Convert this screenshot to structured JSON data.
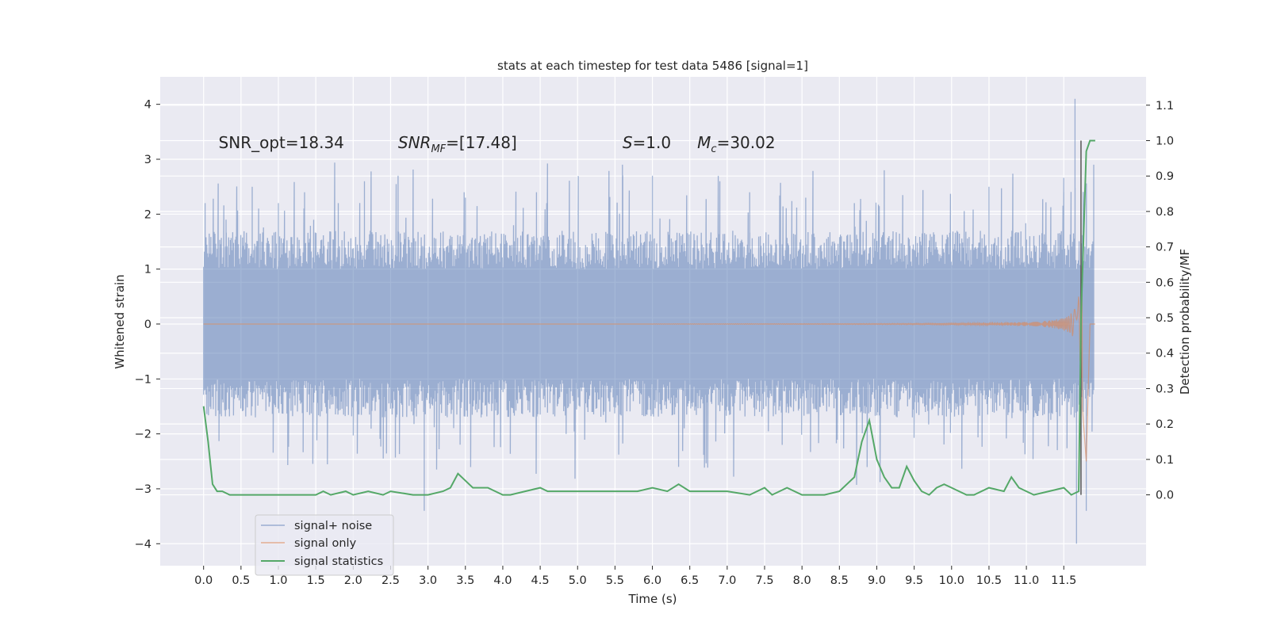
{
  "chart_data": {
    "type": "line",
    "title": "stats at each timestep for test data 5486 [signal=1]",
    "xlabel": "Time (s)",
    "ylabel": "Whitened strain",
    "ylabel_right": "Detection probability/MF",
    "xlim": [
      -0.58,
      12.6
    ],
    "ylim": [
      -4.4,
      4.5
    ],
    "ylim_right": [
      -0.2,
      1.18
    ],
    "x_ticks": [
      "0.0",
      "0.5",
      "1.0",
      "1.5",
      "2.0",
      "2.5",
      "3.0",
      "3.5",
      "4.0",
      "4.5",
      "5.0",
      "5.5",
      "6.0",
      "6.5",
      "7.0",
      "7.5",
      "8.0",
      "8.5",
      "9.0",
      "9.5",
      "10.0",
      "10.5",
      "11.0",
      "11.5"
    ],
    "y_ticks": [
      "4",
      "3",
      "2",
      "1",
      "0",
      "−1",
      "−2",
      "−3",
      "−4"
    ],
    "y_ticks_right": [
      "1.1",
      "1.0",
      "0.9",
      "0.8",
      "0.7",
      "0.6",
      "0.5",
      "0.4",
      "0.3",
      "0.2",
      "0.1",
      "0.0"
    ],
    "grid": true,
    "legend_position": "lower-left",
    "annotations": [
      {
        "label": "SNR_opt=18.34",
        "x": 0.2,
        "y": 3.3
      },
      {
        "label": "SNR",
        "sub": "MF",
        "suffix": "=[17.48]",
        "italic": true,
        "x": 2.6,
        "y": 3.3
      },
      {
        "label": "S",
        "suffix": "=1.0",
        "italic": true,
        "x": 5.6,
        "y": 3.3
      },
      {
        "label": "M",
        "sub": "c",
        "suffix": "=30.02",
        "italic": true,
        "x": 6.6,
        "y": 3.3
      }
    ],
    "series": [
      {
        "name": "signal+ noise",
        "axis": "left",
        "color": "#4c72b0",
        "opacity": 0.5,
        "envelope_x": [
          0.0,
          11.9
        ],
        "envelope_upper_approx": 1.3,
        "envelope_lower_approx": -1.3,
        "spikes": [
          [
            0.02,
            2.2
          ],
          [
            0.3,
            1.9
          ],
          [
            0.65,
            2.5
          ],
          [
            1.0,
            2.2
          ],
          [
            1.35,
            2.4
          ],
          [
            1.8,
            2.2
          ],
          [
            2.15,
            2.6
          ],
          [
            2.6,
            2.7
          ],
          [
            2.95,
            -3.4
          ],
          [
            3.5,
            2.3
          ],
          [
            4.45,
            2.4
          ],
          [
            5.6,
            2.9
          ],
          [
            6.0,
            2.7
          ],
          [
            6.35,
            -2.6
          ],
          [
            7.3,
            2.4
          ],
          [
            8.05,
            2.3
          ],
          [
            8.7,
            2.2
          ],
          [
            9.1,
            2.8
          ],
          [
            10.5,
            2.5
          ],
          [
            11.5,
            2.4
          ],
          [
            11.65,
            4.1
          ],
          [
            11.67,
            -4.0
          ],
          [
            11.8,
            -3.4
          ],
          [
            11.9,
            2.9
          ]
        ]
      },
      {
        "name": "signal only",
        "axis": "left",
        "color": "#dd8452",
        "opacity": 0.6,
        "chirp_start_x": 6.0,
        "chirp_peak_x": 11.75,
        "chirp_peak_amplitude": 3.2
      },
      {
        "name": "signal statistics",
        "axis": "right",
        "color": "#55a868",
        "x": [
          0.0,
          0.06,
          0.12,
          0.18,
          0.25,
          0.35,
          0.5,
          0.7,
          1.0,
          1.3,
          1.5,
          1.6,
          1.7,
          1.9,
          2.0,
          2.2,
          2.4,
          2.5,
          2.8,
          3.0,
          3.2,
          3.3,
          3.4,
          3.5,
          3.6,
          3.7,
          3.8,
          3.9,
          4.0,
          4.1,
          4.3,
          4.5,
          4.6,
          4.8,
          5.0,
          5.2,
          5.5,
          5.8,
          6.0,
          6.2,
          6.35,
          6.5,
          6.7,
          7.0,
          7.3,
          7.5,
          7.6,
          7.8,
          8.0,
          8.3,
          8.5,
          8.7,
          8.8,
          8.9,
          9.0,
          9.1,
          9.2,
          9.3,
          9.4,
          9.5,
          9.6,
          9.7,
          9.8,
          9.9,
          10.0,
          10.1,
          10.2,
          10.3,
          10.5,
          10.7,
          10.8,
          10.9,
          11.0,
          11.1,
          11.3,
          11.5,
          11.6,
          11.7,
          11.73,
          11.8,
          11.85,
          11.92
        ],
        "y": [
          0.25,
          0.15,
          0.03,
          0.01,
          0.01,
          0.0,
          0.0,
          0.0,
          0.0,
          0.0,
          0.0,
          0.01,
          0.0,
          0.01,
          0.0,
          0.01,
          0.0,
          0.01,
          0.0,
          0.0,
          0.01,
          0.02,
          0.06,
          0.04,
          0.02,
          0.02,
          0.02,
          0.01,
          0.0,
          0.0,
          0.01,
          0.02,
          0.01,
          0.01,
          0.01,
          0.01,
          0.01,
          0.01,
          0.02,
          0.01,
          0.03,
          0.01,
          0.01,
          0.01,
          0.0,
          0.02,
          0.0,
          0.02,
          0.0,
          0.0,
          0.01,
          0.05,
          0.15,
          0.21,
          0.1,
          0.05,
          0.02,
          0.02,
          0.08,
          0.04,
          0.01,
          0.0,
          0.02,
          0.03,
          0.02,
          0.01,
          0.0,
          0.0,
          0.02,
          0.01,
          0.05,
          0.02,
          0.01,
          0.0,
          0.01,
          0.02,
          0.0,
          0.01,
          0.5,
          0.97,
          1.0,
          1.0
        ]
      }
    ],
    "vertical_markers": [
      {
        "x": 11.73,
        "y_right_range": [
          0.0,
          1.0
        ],
        "color": "#555555"
      }
    ]
  }
}
